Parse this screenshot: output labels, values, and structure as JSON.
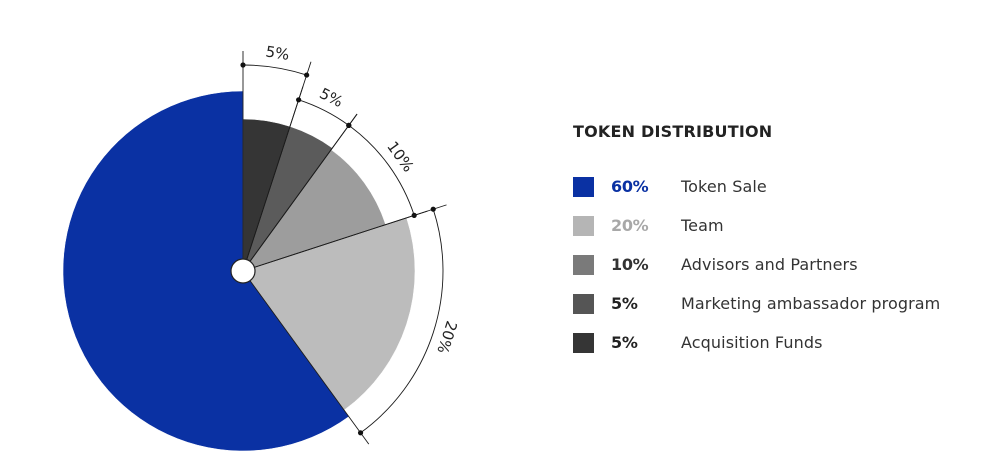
{
  "chart_data": {
    "type": "pie",
    "title": "TOKEN DISTRIBUTION",
    "slices": [
      {
        "label": "Acquisition Funds",
        "value": 5,
        "display": "5%",
        "color": "#353535",
        "pct_color": "#222222"
      },
      {
        "label": "Marketing ambassador program",
        "value": 5,
        "display": "5%",
        "color": "#5b5b5b",
        "pct_color": "#222222"
      },
      {
        "label": "Advisors and Partners",
        "value": 10,
        "display": "10%",
        "color": "#9d9d9d",
        "pct_color": "#333333"
      },
      {
        "label": "Team",
        "value": 20,
        "display": "20%",
        "color": "#bcbcbc",
        "pct_color": "#a8a8a8"
      },
      {
        "label": "Token Sale",
        "value": 60,
        "display": "60%",
        "color": "#0a31a3",
        "pct_color": "#0a31a3"
      }
    ],
    "legend_order": [
      {
        "label": "Token Sale",
        "display": "60%",
        "swatch": "#0a31a3",
        "pct_color": "#0a31a3"
      },
      {
        "label": "Team",
        "display": "20%",
        "swatch": "#b5b5b5",
        "pct_color": "#a8a8a8"
      },
      {
        "label": "Advisors and Partners",
        "display": "10%",
        "swatch": "#7a7a7a",
        "pct_color": "#333333"
      },
      {
        "label": "Marketing ambassador program",
        "display": "5%",
        "swatch": "#555555",
        "pct_color": "#222222"
      },
      {
        "label": "Acquisition Funds",
        "display": "5%",
        "swatch": "#353535",
        "pct_color": "#222222"
      }
    ],
    "legend_position": "right"
  }
}
